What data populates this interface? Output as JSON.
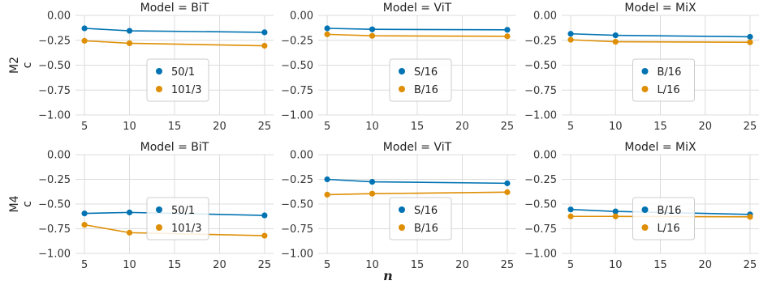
{
  "figure": {
    "xlabel": "n"
  },
  "chart_data": [
    {
      "type": "line",
      "title": "Model = BiT",
      "row_label": [
        "M2",
        "c"
      ],
      "x": [
        5,
        10,
        25
      ],
      "xticks": [
        5,
        10,
        15,
        20,
        25
      ],
      "xlim": [
        4,
        26
      ],
      "ylim": [
        -1.0,
        0.0
      ],
      "yticks": [
        -1.0,
        -0.75,
        -0.5,
        -0.25,
        0.0
      ],
      "ytick_labels": [
        "−1.00",
        "−0.75",
        "−0.50",
        "−0.25",
        "0.00"
      ],
      "grid": true,
      "legend_position": "lower-center",
      "series": [
        {
          "name": "50/1",
          "color": "#0173b2",
          "values": [
            -0.13,
            -0.155,
            -0.17
          ]
        },
        {
          "name": "101/3",
          "color": "#de8f05",
          "values": [
            -0.255,
            -0.28,
            -0.305
          ]
        }
      ]
    },
    {
      "type": "line",
      "title": "Model = ViT",
      "row_label": [
        "M2",
        "c"
      ],
      "x": [
        5,
        10,
        25
      ],
      "xticks": [
        5,
        10,
        15,
        20,
        25
      ],
      "xlim": [
        4,
        26
      ],
      "ylim": [
        -1.0,
        0.0
      ],
      "yticks": [
        -1.0,
        -0.75,
        -0.5,
        -0.25,
        0.0
      ],
      "ytick_labels": [
        "−1.00",
        "−0.75",
        "−0.50",
        "−0.25",
        "0.00"
      ],
      "grid": true,
      "legend_position": "lower-center",
      "series": [
        {
          "name": "S/16",
          "color": "#0173b2",
          "values": [
            -0.13,
            -0.14,
            -0.145
          ]
        },
        {
          "name": "B/16",
          "color": "#de8f05",
          "values": [
            -0.19,
            -0.205,
            -0.21
          ]
        }
      ]
    },
    {
      "type": "line",
      "title": "Model = MiX",
      "row_label": [
        "M2",
        "c"
      ],
      "x": [
        5,
        10,
        25
      ],
      "xticks": [
        5,
        10,
        15,
        20,
        25
      ],
      "xlim": [
        4,
        26
      ],
      "ylim": [
        -1.0,
        0.0
      ],
      "yticks": [
        -1.0,
        -0.75,
        -0.5,
        -0.25,
        0.0
      ],
      "ytick_labels": [
        "−1.00",
        "−0.75",
        "−0.50",
        "−0.25",
        "0.00"
      ],
      "grid": true,
      "legend_position": "lower-center",
      "series": [
        {
          "name": "B/16",
          "color": "#0173b2",
          "values": [
            -0.185,
            -0.2,
            -0.215
          ]
        },
        {
          "name": "L/16",
          "color": "#de8f05",
          "values": [
            -0.245,
            -0.265,
            -0.27
          ]
        }
      ]
    },
    {
      "type": "line",
      "title": "Model = BiT",
      "row_label": [
        "M4",
        "c"
      ],
      "x": [
        5,
        10,
        25
      ],
      "xticks": [
        5,
        10,
        15,
        20,
        25
      ],
      "xlim": [
        4,
        26
      ],
      "ylim": [
        -1.0,
        0.0
      ],
      "yticks": [
        -1.0,
        -0.75,
        -0.5,
        -0.25,
        0.0
      ],
      "ytick_labels": [
        "−1.00",
        "−0.75",
        "−0.50",
        "−0.25",
        "0.00"
      ],
      "grid": true,
      "legend_position": "lower-center",
      "series": [
        {
          "name": "50/1",
          "color": "#0173b2",
          "values": [
            -0.595,
            -0.585,
            -0.615
          ]
        },
        {
          "name": "101/3",
          "color": "#de8f05",
          "values": [
            -0.71,
            -0.79,
            -0.82
          ]
        }
      ]
    },
    {
      "type": "line",
      "title": "Model = ViT",
      "row_label": [
        "M4",
        "c"
      ],
      "x": [
        5,
        10,
        25
      ],
      "xticks": [
        5,
        10,
        15,
        20,
        25
      ],
      "xlim": [
        4,
        26
      ],
      "ylim": [
        -1.0,
        0.0
      ],
      "yticks": [
        -1.0,
        -0.75,
        -0.5,
        -0.25,
        0.0
      ],
      "ytick_labels": [
        "−1.00",
        "−0.75",
        "−0.50",
        "−0.25",
        "0.00"
      ],
      "grid": true,
      "legend_position": "lower-center",
      "series": [
        {
          "name": "S/16",
          "color": "#0173b2",
          "values": [
            -0.25,
            -0.275,
            -0.29
          ]
        },
        {
          "name": "B/16",
          "color": "#de8f05",
          "values": [
            -0.405,
            -0.395,
            -0.38
          ]
        }
      ]
    },
    {
      "type": "line",
      "title": "Model = MiX",
      "row_label": [
        "M4",
        "c"
      ],
      "x": [
        5,
        10,
        25
      ],
      "xticks": [
        5,
        10,
        15,
        20,
        25
      ],
      "xlim": [
        4,
        26
      ],
      "ylim": [
        -1.0,
        0.0
      ],
      "yticks": [
        -1.0,
        -0.75,
        -0.5,
        -0.25,
        0.0
      ],
      "ytick_labels": [
        "−1.00",
        "−0.75",
        "−0.50",
        "−0.25",
        "0.00"
      ],
      "grid": true,
      "legend_position": "lower-center",
      "series": [
        {
          "name": "B/16",
          "color": "#0173b2",
          "values": [
            -0.555,
            -0.575,
            -0.605
          ]
        },
        {
          "name": "L/16",
          "color": "#de8f05",
          "values": [
            -0.625,
            -0.625,
            -0.63
          ]
        }
      ]
    }
  ]
}
